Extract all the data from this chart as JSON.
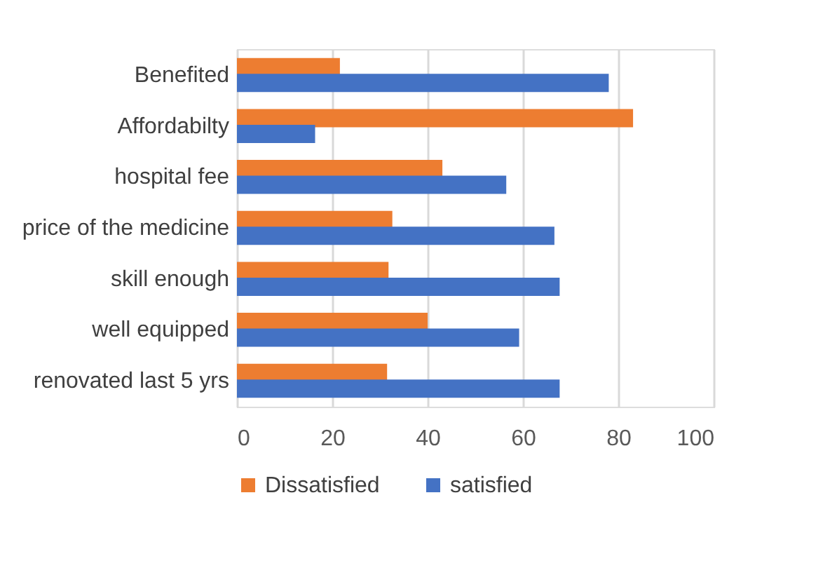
{
  "chart_data": {
    "type": "bar",
    "orientation": "horizontal",
    "categories": [
      "Benefited",
      "Affordabilty",
      "hospital fee",
      "price of the medicine",
      "skill enough",
      "well equipped",
      "renovated last 5 yrs"
    ],
    "series": [
      {
        "name": "Dissatisfied",
        "color": "#ed7d31",
        "values": [
          21.6,
          83.1,
          43.1,
          32.6,
          31.8,
          40.0,
          31.5
        ]
      },
      {
        "name": "satisfied",
        "color": "#4472c4",
        "values": [
          78.0,
          16.4,
          56.5,
          66.6,
          67.7,
          59.2,
          67.7
        ]
      }
    ],
    "xlim": [
      0,
      100
    ],
    "xticks": [
      0,
      20,
      40,
      60,
      80,
      100
    ],
    "grid": "x",
    "legend": "bottom"
  }
}
